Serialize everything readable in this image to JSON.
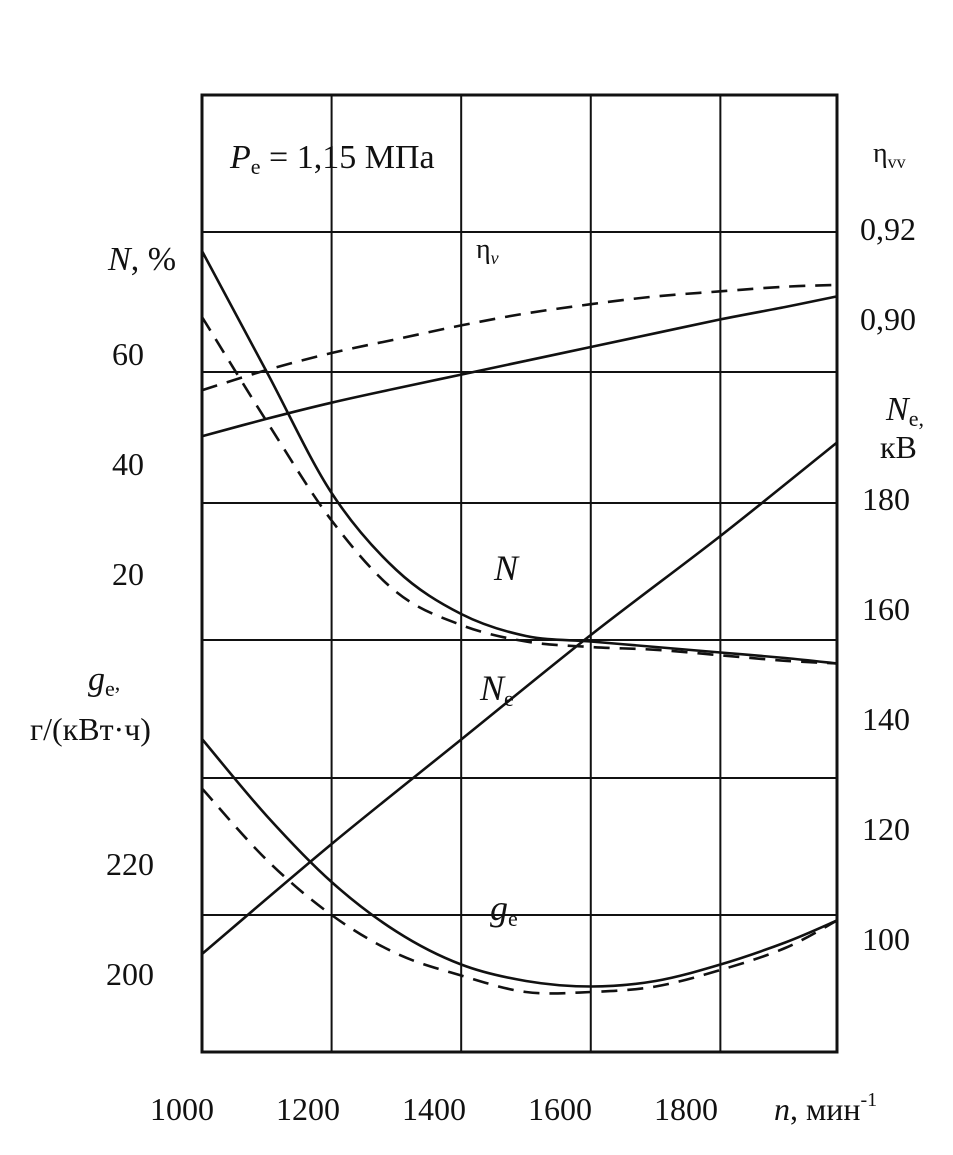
{
  "chart_data": {
    "type": "line",
    "annotation": {
      "P": "P",
      "sub": "e",
      "rest": " = 1,15 МПа"
    },
    "x_axis": {
      "ticks": [
        1000,
        1200,
        1400,
        1600,
        1800
      ],
      "label_var": "n",
      "label_unit": ", мин",
      "label_sup": "-1",
      "range": [
        1000,
        1980
      ]
    },
    "left_axes": {
      "N": {
        "title_var": "N",
        "title_unit": ", %",
        "ticks": [
          "60",
          "40",
          "20"
        ]
      },
      "ge": {
        "title_var": "g",
        "title_sub": "e",
        "title_unit_line": "г/(кВт·ч)",
        "ticks": [
          "220",
          "200"
        ]
      }
    },
    "right_axes": {
      "eta": {
        "title": "η",
        "title_sub": "vv",
        "ticks": [
          "0,92",
          "0,90"
        ]
      },
      "Ne": {
        "title_var": "N",
        "title_sub": "e,",
        "title_unit": "кВ",
        "ticks": [
          "180",
          "160",
          "140",
          "120",
          "100"
        ]
      }
    },
    "curve_labels": {
      "eta": {
        "text": "η",
        "sub": "v"
      },
      "N": {
        "text": "N"
      },
      "Ne": {
        "text": "N",
        "sub": "e"
      },
      "ge": {
        "text": "g",
        "sub": "e"
      }
    },
    "series": [
      {
        "id": "eta_solid",
        "style": "solid",
        "x": [
          1000,
          1100,
          1200,
          1300,
          1400,
          1500,
          1600,
          1700,
          1800,
          1900,
          1980
        ],
        "y": [
          0.8756,
          0.8794,
          0.8829,
          0.886,
          0.889,
          0.892,
          0.895,
          0.898,
          0.901,
          0.9037,
          0.906
        ],
        "unit": "η_v"
      },
      {
        "id": "eta_dashed",
        "style": "dashed",
        "x": [
          1000,
          1100,
          1200,
          1300,
          1400,
          1500,
          1600,
          1700,
          1800,
          1900,
          1980
        ],
        "y": [
          0.8856,
          0.89,
          0.8937,
          0.8967,
          0.8997,
          0.9023,
          0.9043,
          0.906,
          0.9071,
          0.9081,
          0.9085
        ],
        "unit": "η_v"
      },
      {
        "id": "N_solid",
        "style": "solid",
        "x": [
          1000,
          1100,
          1200,
          1300,
          1400,
          1500,
          1600,
          1700,
          1800,
          1900,
          1980
        ],
        "y": [
          82,
          60,
          38,
          24,
          16,
          12,
          11,
          10,
          9,
          8,
          7
        ],
        "unit": "%"
      },
      {
        "id": "N_dashed",
        "style": "dashed",
        "x": [
          1000,
          1100,
          1200,
          1300,
          1400,
          1500,
          1600,
          1700,
          1800,
          1900,
          1980
        ],
        "y": [
          70,
          51,
          33,
          20,
          14,
          11,
          10,
          9.5,
          8.5,
          7.5,
          7
        ],
        "unit": "%"
      },
      {
        "id": "Ne_solid",
        "style": "solid",
        "x": [
          1000,
          1200,
          1400,
          1600,
          1800,
          1980
        ],
        "y": [
          98,
          118,
          137,
          156,
          174,
          191
        ],
        "unit": "кВ"
      },
      {
        "id": "ge_solid",
        "style": "solid",
        "x": [
          1000,
          1100,
          1200,
          1300,
          1400,
          1500,
          1600,
          1700,
          1800,
          1900,
          1980
        ],
        "y": [
          242,
          228,
          216,
          207,
          201,
          198,
          197,
          198,
          201,
          205,
          209
        ],
        "unit": "г/(кВт·ч)"
      },
      {
        "id": "ge_dashed",
        "style": "dashed",
        "x": [
          1000,
          1100,
          1200,
          1300,
          1400,
          1500,
          1600,
          1700,
          1800,
          1900,
          1980
        ],
        "y": [
          233,
          220,
          210,
          203,
          199,
          196,
          196,
          197,
          200,
          204,
          209
        ],
        "unit": "г/(кВт·ч)"
      }
    ]
  }
}
